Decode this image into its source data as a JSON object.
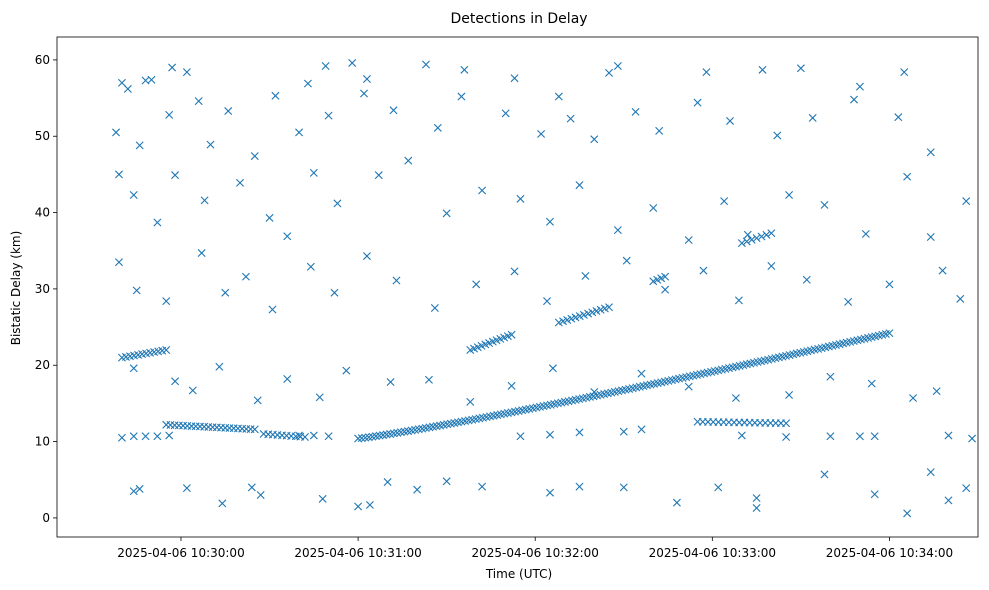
{
  "chart_data": {
    "type": "scatter",
    "title": "Detections in Delay",
    "xlabel": "Time (UTC)",
    "ylabel": "Bistatic Delay (km)",
    "x_unit": "time",
    "xlim": [
      "2025-04-06 10:29:18",
      "2025-04-06 10:34:30"
    ],
    "ylim": [
      -2.5,
      63
    ],
    "x_ticks": [
      "2025-04-06 10:30:00",
      "2025-04-06 10:31:00",
      "2025-04-06 10:32:00",
      "2025-04-06 10:33:00",
      "2025-04-06 10:34:00"
    ],
    "y_ticks": [
      0,
      10,
      20,
      30,
      40,
      50,
      60
    ],
    "grid": false,
    "marker": "x",
    "color": "#1f77b4",
    "series": [
      {
        "points": [
          [
            "2025-04-06 10:29:40",
            57
          ],
          [
            "2025-04-06 10:29:42",
            56.2
          ],
          [
            "2025-04-06 10:29:48",
            57.3
          ],
          [
            "2025-04-06 10:29:50",
            57.4
          ],
          [
            "2025-04-06 10:29:57",
            59
          ],
          [
            "2025-04-06 10:30:02",
            58.4
          ],
          [
            "2025-04-06 10:30:06",
            54.6
          ],
          [
            "2025-04-06 10:30:32",
            55.3
          ],
          [
            "2025-04-06 10:30:43",
            56.9
          ],
          [
            "2025-04-06 10:30:49",
            59.2
          ],
          [
            "2025-04-06 10:30:58",
            59.6
          ],
          [
            "2025-04-06 10:31:03",
            57.5
          ],
          [
            "2025-04-06 10:31:23",
            59.4
          ],
          [
            "2025-04-06 10:31:36",
            58.7
          ],
          [
            "2025-04-06 10:31:53",
            57.6
          ],
          [
            "2025-04-06 10:32:08",
            55.2
          ],
          [
            "2025-04-06 10:32:25",
            58.3
          ],
          [
            "2025-04-06 10:32:28",
            59.2
          ],
          [
            "2025-04-06 10:32:58",
            58.4
          ],
          [
            "2025-04-06 10:33:17",
            58.7
          ],
          [
            "2025-04-06 10:33:30",
            58.9
          ],
          [
            "2025-04-06 10:33:50",
            56.5
          ],
          [
            "2025-04-06 10:34:05",
            58.4
          ],
          [
            "2025-04-06 10:29:38",
            50.5
          ],
          [
            "2025-04-06 10:29:46",
            48.8
          ],
          [
            "2025-04-06 10:29:56",
            52.8
          ],
          [
            "2025-04-06 10:30:10",
            48.9
          ],
          [
            "2025-04-06 10:30:16",
            53.3
          ],
          [
            "2025-04-06 10:30:25",
            47.4
          ],
          [
            "2025-04-06 10:30:40",
            50.5
          ],
          [
            "2025-04-06 10:30:50",
            52.7
          ],
          [
            "2025-04-06 10:31:02",
            55.6
          ],
          [
            "2025-04-06 10:31:12",
            53.4
          ],
          [
            "2025-04-06 10:31:27",
            51.1
          ],
          [
            "2025-04-06 10:31:35",
            55.2
          ],
          [
            "2025-04-06 10:31:50",
            53
          ],
          [
            "2025-04-06 10:32:02",
            50.3
          ],
          [
            "2025-04-06 10:32:12",
            52.3
          ],
          [
            "2025-04-06 10:32:20",
            49.6
          ],
          [
            "2025-04-06 10:32:34",
            53.2
          ],
          [
            "2025-04-06 10:32:42",
            50.7
          ],
          [
            "2025-04-06 10:32:55",
            54.4
          ],
          [
            "2025-04-06 10:33:06",
            52
          ],
          [
            "2025-04-06 10:33:22",
            50.1
          ],
          [
            "2025-04-06 10:33:34",
            52.4
          ],
          [
            "2025-04-06 10:33:48",
            54.8
          ],
          [
            "2025-04-06 10:34:03",
            52.5
          ],
          [
            "2025-04-06 10:34:14",
            47.9
          ],
          [
            "2025-04-06 10:29:39",
            45
          ],
          [
            "2025-04-06 10:29:44",
            42.3
          ],
          [
            "2025-04-06 10:29:52",
            38.7
          ],
          [
            "2025-04-06 10:29:58",
            44.9
          ],
          [
            "2025-04-06 10:30:08",
            41.6
          ],
          [
            "2025-04-06 10:30:20",
            43.9
          ],
          [
            "2025-04-06 10:30:30",
            39.3
          ],
          [
            "2025-04-06 10:30:36",
            36.9
          ],
          [
            "2025-04-06 10:30:45",
            45.2
          ],
          [
            "2025-04-06 10:30:53",
            41.2
          ],
          [
            "2025-04-06 10:31:07",
            44.9
          ],
          [
            "2025-04-06 10:31:17",
            46.8
          ],
          [
            "2025-04-06 10:31:30",
            39.9
          ],
          [
            "2025-04-06 10:31:42",
            42.9
          ],
          [
            "2025-04-06 10:31:55",
            41.8
          ],
          [
            "2025-04-06 10:32:05",
            38.8
          ],
          [
            "2025-04-06 10:32:15",
            43.6
          ],
          [
            "2025-04-06 10:32:28",
            37.7
          ],
          [
            "2025-04-06 10:32:40",
            40.6
          ],
          [
            "2025-04-06 10:32:52",
            36.4
          ],
          [
            "2025-04-06 10:33:04",
            41.5
          ],
          [
            "2025-04-06 10:33:12",
            37.1
          ],
          [
            "2025-04-06 10:33:26",
            42.3
          ],
          [
            "2025-04-06 10:33:38",
            41
          ],
          [
            "2025-04-06 10:33:52",
            37.2
          ],
          [
            "2025-04-06 10:34:06",
            44.7
          ],
          [
            "2025-04-06 10:34:14",
            36.8
          ],
          [
            "2025-04-06 10:34:26",
            41.5
          ],
          [
            "2025-04-06 10:29:39",
            33.5
          ],
          [
            "2025-04-06 10:29:45",
            29.8
          ],
          [
            "2025-04-06 10:29:55",
            28.4
          ],
          [
            "2025-04-06 10:30:07",
            34.7
          ],
          [
            "2025-04-06 10:30:15",
            29.5
          ],
          [
            "2025-04-06 10:30:22",
            31.6
          ],
          [
            "2025-04-06 10:30:31",
            27.3
          ],
          [
            "2025-04-06 10:30:44",
            32.9
          ],
          [
            "2025-04-06 10:30:52",
            29.5
          ],
          [
            "2025-04-06 10:31:03",
            34.3
          ],
          [
            "2025-04-06 10:31:13",
            31.1
          ],
          [
            "2025-04-06 10:31:26",
            27.5
          ],
          [
            "2025-04-06 10:31:40",
            30.6
          ],
          [
            "2025-04-06 10:31:53",
            32.3
          ],
          [
            "2025-04-06 10:32:04",
            28.4
          ],
          [
            "2025-04-06 10:32:17",
            31.7
          ],
          [
            "2025-04-06 10:32:31",
            33.7
          ],
          [
            "2025-04-06 10:32:44",
            29.9
          ],
          [
            "2025-04-06 10:32:57",
            32.4
          ],
          [
            "2025-04-06 10:33:09",
            28.5
          ],
          [
            "2025-04-06 10:33:20",
            33
          ],
          [
            "2025-04-06 10:33:32",
            31.2
          ],
          [
            "2025-04-06 10:33:46",
            28.3
          ],
          [
            "2025-04-06 10:34:00",
            30.6
          ],
          [
            "2025-04-06 10:34:18",
            32.4
          ],
          [
            "2025-04-06 10:34:24",
            28.7
          ],
          [
            "2025-04-06 10:29:44",
            19.6
          ],
          [
            "2025-04-06 10:29:58",
            17.9
          ],
          [
            "2025-04-06 10:30:04",
            16.7
          ],
          [
            "2025-04-06 10:30:13",
            19.8
          ],
          [
            "2025-04-06 10:30:26",
            15.4
          ],
          [
            "2025-04-06 10:30:36",
            18.2
          ],
          [
            "2025-04-06 10:30:47",
            15.8
          ],
          [
            "2025-04-06 10:30:56",
            19.3
          ],
          [
            "2025-04-06 10:31:11",
            17.8
          ],
          [
            "2025-04-06 10:31:24",
            18.1
          ],
          [
            "2025-04-06 10:31:38",
            15.2
          ],
          [
            "2025-04-06 10:31:52",
            17.3
          ],
          [
            "2025-04-06 10:32:06",
            19.6
          ],
          [
            "2025-04-06 10:32:20",
            16.5
          ],
          [
            "2025-04-06 10:32:36",
            18.9
          ],
          [
            "2025-04-06 10:32:52",
            17.2
          ],
          [
            "2025-04-06 10:33:08",
            15.7
          ],
          [
            "2025-04-06 10:33:26",
            16.1
          ],
          [
            "2025-04-06 10:33:40",
            18.5
          ],
          [
            "2025-04-06 10:33:54",
            17.6
          ],
          [
            "2025-04-06 10:34:08",
            15.7
          ],
          [
            "2025-04-06 10:34:16",
            16.6
          ],
          [
            "2025-04-06 10:29:40",
            10.5
          ],
          [
            "2025-04-06 10:29:44",
            10.7
          ],
          [
            "2025-04-06 10:29:48",
            10.7
          ],
          [
            "2025-04-06 10:29:52",
            10.7
          ],
          [
            "2025-04-06 10:29:56",
            10.8
          ],
          [
            "2025-04-06 10:30:40",
            10.8
          ],
          [
            "2025-04-06 10:30:45",
            10.8
          ],
          [
            "2025-04-06 10:30:50",
            10.7
          ],
          [
            "2025-04-06 10:31:55",
            10.7
          ],
          [
            "2025-04-06 10:32:05",
            10.9
          ],
          [
            "2025-04-06 10:32:15",
            11.2
          ],
          [
            "2025-04-06 10:32:30",
            11.3
          ],
          [
            "2025-04-06 10:32:36",
            11.6
          ],
          [
            "2025-04-06 10:33:10",
            10.8
          ],
          [
            "2025-04-06 10:33:25",
            10.6
          ],
          [
            "2025-04-06 10:33:40",
            10.7
          ],
          [
            "2025-04-06 10:33:50",
            10.7
          ],
          [
            "2025-04-06 10:33:55",
            10.7
          ],
          [
            "2025-04-06 10:34:20",
            10.8
          ],
          [
            "2025-04-06 10:34:28",
            10.4
          ],
          [
            "2025-04-06 10:29:44",
            3.5
          ],
          [
            "2025-04-06 10:29:46",
            3.8
          ],
          [
            "2025-04-06 10:30:02",
            3.9
          ],
          [
            "2025-04-06 10:30:14",
            1.9
          ],
          [
            "2025-04-06 10:30:24",
            4
          ],
          [
            "2025-04-06 10:30:27",
            3
          ],
          [
            "2025-04-06 10:30:48",
            2.5
          ],
          [
            "2025-04-06 10:31:00",
            1.5
          ],
          [
            "2025-04-06 10:31:04",
            1.7
          ],
          [
            "2025-04-06 10:31:10",
            4.7
          ],
          [
            "2025-04-06 10:31:20",
            3.7
          ],
          [
            "2025-04-06 10:31:30",
            4.8
          ],
          [
            "2025-04-06 10:31:42",
            4.1
          ],
          [
            "2025-04-06 10:32:05",
            3.3
          ],
          [
            "2025-04-06 10:32:15",
            4.1
          ],
          [
            "2025-04-06 10:32:30",
            4
          ],
          [
            "2025-04-06 10:32:48",
            2
          ],
          [
            "2025-04-06 10:33:02",
            4
          ],
          [
            "2025-04-06 10:33:15",
            2.6
          ],
          [
            "2025-04-06 10:33:15",
            1.3
          ],
          [
            "2025-04-06 10:33:38",
            5.7
          ],
          [
            "2025-04-06 10:33:55",
            3.1
          ],
          [
            "2025-04-06 10:34:06",
            0.6
          ],
          [
            "2025-04-06 10:34:14",
            6
          ],
          [
            "2025-04-06 10:34:20",
            2.3
          ],
          [
            "2025-04-06 10:34:26",
            3.9
          ]
        ]
      }
    ],
    "tracks": [
      {
        "start": [
          "2025-04-06 10:29:40",
          21.0
        ],
        "end": [
          "2025-04-06 10:29:55",
          22.0
        ],
        "points": 12
      },
      {
        "start": [
          "2025-04-06 10:29:55",
          12.2
        ],
        "end": [
          "2025-04-06 10:30:25",
          11.6
        ],
        "points": 22
      },
      {
        "start": [
          "2025-04-06 10:30:28",
          11.0
        ],
        "end": [
          "2025-04-06 10:30:42",
          10.6
        ],
        "points": 10
      },
      {
        "start": [
          "2025-04-06 10:31:00",
          10.4
        ],
        "end": [
          "2025-04-06 10:34:00",
          24.2
        ],
        "points": 150
      },
      {
        "start": [
          "2025-04-06 10:31:38",
          22.0
        ],
        "end": [
          "2025-04-06 10:31:52",
          24.0
        ],
        "points": 12
      },
      {
        "start": [
          "2025-04-06 10:32:08",
          25.6
        ],
        "end": [
          "2025-04-06 10:32:25",
          27.6
        ],
        "points": 13
      },
      {
        "start": [
          "2025-04-06 10:32:55",
          12.6
        ],
        "end": [
          "2025-04-06 10:33:25",
          12.4
        ],
        "points": 18
      },
      {
        "start": [
          "2025-04-06 10:32:40",
          31.0
        ],
        "end": [
          "2025-04-06 10:32:44",
          31.6
        ],
        "points": 4
      },
      {
        "start": [
          "2025-04-06 10:33:10",
          36.0
        ],
        "end": [
          "2025-04-06 10:33:20",
          37.3
        ],
        "points": 7
      }
    ]
  }
}
